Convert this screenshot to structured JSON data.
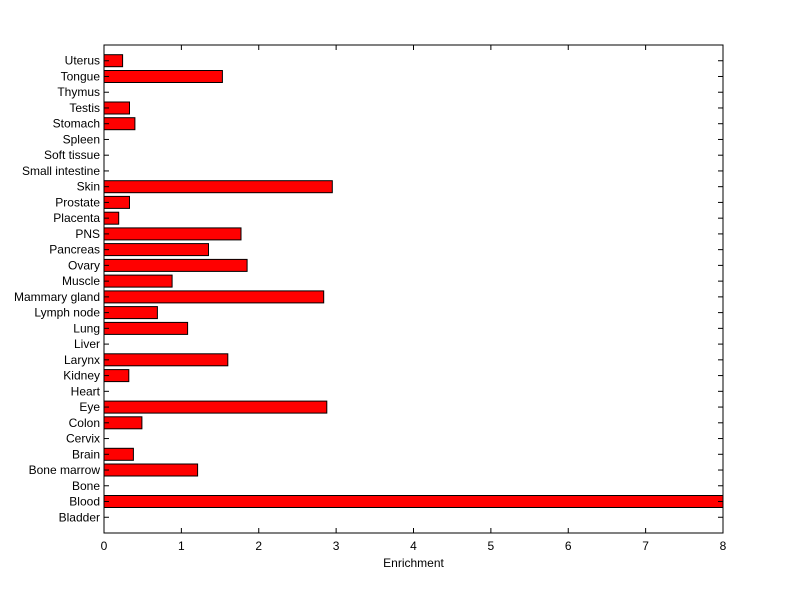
{
  "chart_data": {
    "type": "bar",
    "orientation": "horizontal",
    "categories": [
      "Bladder",
      "Blood",
      "Bone",
      "Bone marrow",
      "Brain",
      "Cervix",
      "Colon",
      "Eye",
      "Heart",
      "Kidney",
      "Larynx",
      "Liver",
      "Lung",
      "Lymph node",
      "Mammary gland",
      "Muscle",
      "Ovary",
      "Pancreas",
      "PNS",
      "Placenta",
      "Prostate",
      "Skin",
      "Small intestine",
      "Soft tissue",
      "Spleen",
      "Stomach",
      "Testis",
      "Thymus",
      "Tongue",
      "Uterus"
    ],
    "values": [
      0,
      8.0,
      0,
      1.21,
      0.38,
      0,
      0.49,
      2.88,
      0,
      0.32,
      1.6,
      0,
      1.08,
      0.69,
      2.84,
      0.88,
      1.85,
      1.35,
      1.77,
      0.19,
      0.33,
      2.95,
      0,
      0,
      0,
      0.4,
      0.33,
      0,
      1.53,
      0.24
    ],
    "xlabel": "Enrichment",
    "ylabel": "",
    "xlim": [
      0,
      8
    ],
    "xticks": [
      "0",
      "1",
      "2",
      "3",
      "4",
      "5",
      "6",
      "7",
      "8"
    ],
    "grid": false,
    "bar_color": "#ff0000",
    "edge_color": "#000000"
  }
}
